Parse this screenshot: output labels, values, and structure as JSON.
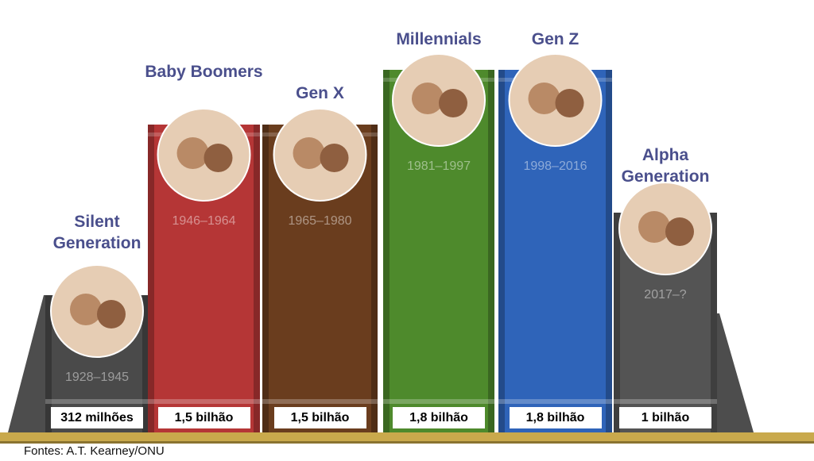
{
  "books": [
    {
      "title": "Silent Generation",
      "years": "1928–1945",
      "population": "312 milhões",
      "color": "#4a4a4a"
    },
    {
      "title": "Baby Boomers",
      "years": "1946–1964",
      "population": "1,5 bilhão",
      "color": "#b53636"
    },
    {
      "title": "Gen X",
      "years": "1965–1980",
      "population": "1,5 bilhão",
      "color": "#6a3d1e"
    },
    {
      "title": "Millennials",
      "years": "1981–1997",
      "population": "1,8 bilhão",
      "color": "#4e8a2c"
    },
    {
      "title": "Gen Z",
      "years": "1998–2016",
      "population": "1,8 bilhão",
      "color": "#2f64b9"
    },
    {
      "title": "Alpha Generation",
      "years": "2017–?",
      "population": "1 bilhão",
      "color": "#545454"
    }
  ],
  "source": "Fontes: A.T. Kearney/ONU"
}
